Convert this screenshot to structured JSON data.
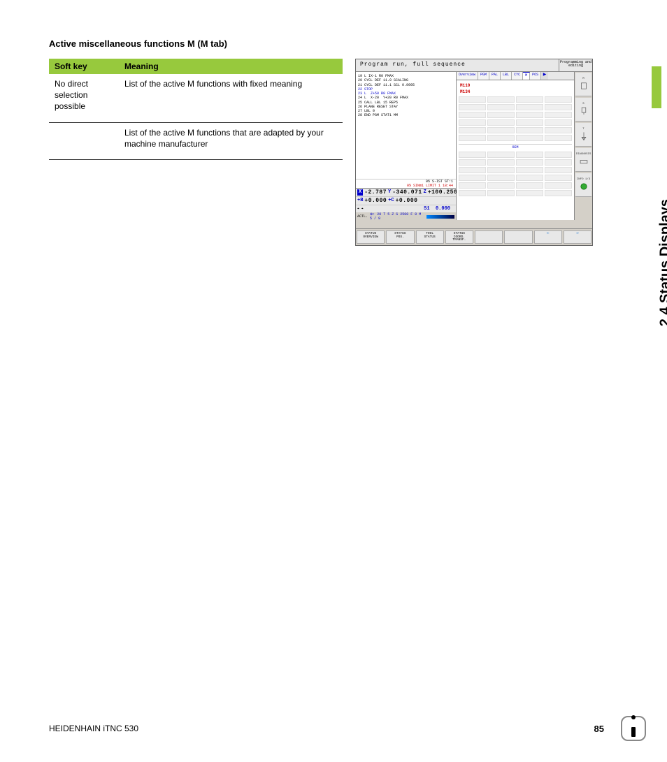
{
  "heading": "Active miscellaneous functions M (M tab)",
  "table": {
    "headers": {
      "c1": "Soft key",
      "c2": "Meaning"
    },
    "rows": [
      {
        "c1": "No direct selection possible",
        "c2": "List of the active M functions with fixed meaning"
      },
      {
        "c1": "",
        "c2": "List of the active M functions that are adapted by your machine manufacturer"
      }
    ]
  },
  "side_tab": "2.4 Status Displays",
  "footer": {
    "manual": "HEIDENHAIN iTNC 530",
    "page": "85"
  },
  "cnc": {
    "title_main": "Program run, full sequence",
    "title_sub": "Programming\nand editing",
    "program_lines": [
      {
        "text": "19 L IX-1 R0 FMAX",
        "cls": ""
      },
      {
        "text": "20 CYCL DEF 11.0 SCALING",
        "cls": ""
      },
      {
        "text": "21 CYCL DEF 11.1 SCL 0.9995",
        "cls": ""
      },
      {
        "text": "22 STOP",
        "cls": "blue"
      },
      {
        "text": "23 L  Z+50 R0 FMAX",
        "cls": "blue"
      },
      {
        "text": "24 L  X-20  Y+20 R0 FMAX",
        "cls": ""
      },
      {
        "text": "25 CALL LBL 15 REP5",
        "cls": ""
      },
      {
        "text": "26 PLANE RESET STAY",
        "cls": ""
      },
      {
        "text": "27 LBL 0",
        "cls": ""
      },
      {
        "text": "28 END PGM STAT1 MM",
        "cls": ""
      }
    ],
    "status_line1": "0% S-IST      ST:1",
    "status_line2": "0% SINm1 LIMIT 1 18:44",
    "coords": {
      "row1": [
        {
          "badge": "X",
          "val": "-2.787"
        },
        {
          "lbl": "Y",
          "val": "-340.071"
        },
        {
          "lbl": "Z",
          "val": "+100.250"
        }
      ],
      "row2": [
        {
          "lbl": "+B",
          "val": "+0.000"
        },
        {
          "lbl": "+C",
          "val": "+0.000"
        }
      ],
      "s1_label": "S1",
      "s1_val": "0.000",
      "actl": "ACTL.",
      "actl_info": "⊕: 20      T 5            Z S 2500       F 0        M 5 / 9"
    },
    "tabs": [
      "Overview",
      "PGM",
      "PAL",
      "LBL",
      "CYC",
      "M",
      "POS"
    ],
    "tabs_active_index": 5,
    "m_values": [
      "M110",
      "M134"
    ],
    "oem_label": "OEM",
    "icons": [
      {
        "lbl": "M"
      },
      {
        "lbl": "S"
      },
      {
        "lbl": "T"
      },
      {
        "lbl": "DIAGNOSIS"
      },
      {
        "lbl": "INFO 1/3"
      }
    ],
    "softkeys": [
      "STATUS\nOVERVIEW",
      "STATUS\nPOS.",
      "TOOL\nSTATUS",
      "STATUS\nCOORD.\nTRANSF.",
      "",
      "",
      "⇐",
      "⇒"
    ]
  }
}
